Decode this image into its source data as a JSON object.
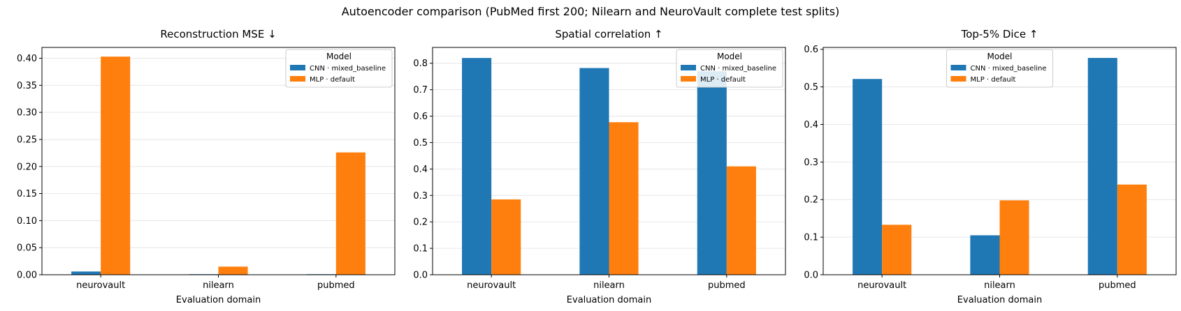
{
  "figure": {
    "suptitle": "Autoencoder comparison (PubMed first 200; Nilearn and NeuroVault complete test splits)"
  },
  "colors": {
    "cnn": "#1f77b4",
    "mlp": "#ff7f0e",
    "grid": "#e6e6e6"
  },
  "chart_data": [
    {
      "type": "bar",
      "title": "Reconstruction MSE ↓",
      "xlabel": "Evaluation domain",
      "ylabel": "",
      "categories": [
        "neurovault",
        "nilearn",
        "pubmed"
      ],
      "series": [
        {
          "name": "CNN · mixed_baseline",
          "values": [
            0.006,
            0.001,
            0.001
          ]
        },
        {
          "name": "MLP · default",
          "values": [
            0.403,
            0.015,
            0.226
          ]
        }
      ],
      "ylim": [
        0,
        0.42
      ],
      "yticks": [
        "0.00",
        "0.05",
        "0.10",
        "0.15",
        "0.20",
        "0.25",
        "0.30",
        "0.35",
        "0.40"
      ],
      "yticks_values": [
        0,
        0.05,
        0.1,
        0.15,
        0.2,
        0.25,
        0.3,
        0.35,
        0.4
      ],
      "grid": "y",
      "legend": {
        "title": "Model",
        "placement": "top-right"
      }
    },
    {
      "type": "bar",
      "title": "Spatial correlation ↑",
      "xlabel": "Evaluation domain",
      "ylabel": "",
      "categories": [
        "neurovault",
        "nilearn",
        "pubmed"
      ],
      "series": [
        {
          "name": "CNN · mixed_baseline",
          "values": [
            0.82,
            0.782,
            0.77
          ]
        },
        {
          "name": "MLP · default",
          "values": [
            0.285,
            0.577,
            0.41
          ]
        }
      ],
      "ylim": [
        0,
        0.86
      ],
      "yticks": [
        "0.0",
        "0.1",
        "0.2",
        "0.3",
        "0.4",
        "0.5",
        "0.6",
        "0.7",
        "0.8"
      ],
      "yticks_values": [
        0,
        0.1,
        0.2,
        0.3,
        0.4,
        0.5,
        0.6,
        0.7,
        0.8
      ],
      "grid": "y",
      "legend": {
        "title": "Model",
        "placement": "top-right"
      }
    },
    {
      "type": "bar",
      "title": "Top-5% Dice ↑",
      "xlabel": "Evaluation domain",
      "ylabel": "",
      "categories": [
        "neurovault",
        "nilearn",
        "pubmed"
      ],
      "series": [
        {
          "name": "CNN · mixed_baseline",
          "values": [
            0.521,
            0.105,
            0.577
          ]
        },
        {
          "name": "MLP · default",
          "values": [
            0.133,
            0.198,
            0.24
          ]
        }
      ],
      "ylim": [
        0,
        0.605
      ],
      "yticks": [
        "0.0",
        "0.1",
        "0.2",
        "0.3",
        "0.4",
        "0.5",
        "0.6"
      ],
      "yticks_values": [
        0,
        0.1,
        0.2,
        0.3,
        0.4,
        0.5,
        0.6
      ],
      "grid": "y",
      "legend": {
        "title": "Model",
        "placement": "top-center"
      }
    }
  ]
}
